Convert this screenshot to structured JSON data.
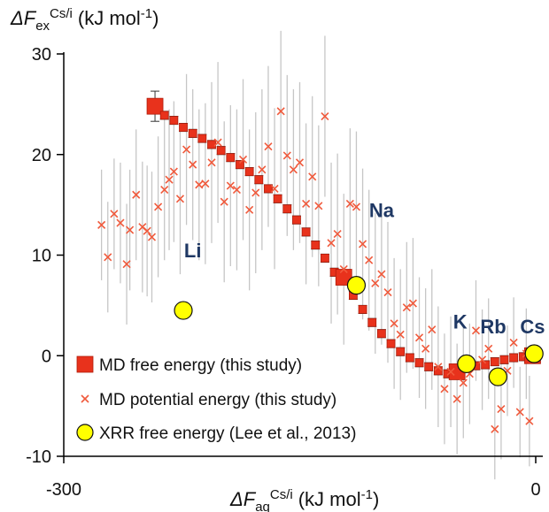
{
  "chart_data": {
    "type": "scatter",
    "ylabel": {
      "prefix": "ΔF",
      "sub": "ex",
      "sup": "Cs/i",
      "unit": "(kJ mol",
      "unit_sup": "-1",
      "unit_end": ")"
    },
    "xlabel": {
      "prefix": "ΔF",
      "sub": "aq",
      "sup": "Cs/i",
      "unit": "(kJ mol",
      "unit_sup": "-1",
      "unit_end": ")"
    },
    "xlim": [
      -300,
      0
    ],
    "ylim": [
      -10,
      30
    ],
    "x_ticks": [
      {
        "value": -300,
        "label": "-300"
      },
      {
        "value": 0,
        "label": "0"
      }
    ],
    "y_ticks": [
      {
        "value": 30,
        "label": "30"
      },
      {
        "value": 20,
        "label": "20"
      },
      {
        "value": 10,
        "label": "10"
      },
      {
        "value": 0,
        "label": "0"
      },
      {
        "value": -10,
        "label": "-10"
      }
    ],
    "grid": false,
    "legend_position": "bottom-left",
    "series": [
      {
        "name": "MD free energy (this study)",
        "marker": "square",
        "color": "#e8321c",
        "edge": "#b01c0a",
        "x": [
          -242,
          -236,
          -230,
          -224,
          -218,
          -212,
          -206,
          -200,
          -194,
          -188,
          -182,
          -176,
          -170,
          -164,
          -158,
          -152,
          -146,
          -140,
          -134,
          -128,
          -122,
          -116,
          -110,
          -104,
          -98,
          -92,
          -86,
          -80,
          -74,
          -68,
          -62,
          -56,
          -50,
          -44,
          -38,
          -32,
          -26,
          -20,
          -14,
          -8,
          -2
        ],
        "y": [
          24.8,
          23.9,
          23.4,
          22.7,
          22.1,
          21.6,
          21.0,
          20.4,
          19.7,
          19.0,
          18.3,
          17.5,
          16.6,
          15.6,
          14.6,
          13.5,
          12.3,
          11.0,
          9.7,
          8.3,
          7.8,
          6.0,
          4.6,
          3.3,
          2.2,
          1.2,
          0.4,
          -0.2,
          -0.7,
          -1.1,
          -1.5,
          -1.8,
          -1.6,
          -1.2,
          -1.0,
          -0.9,
          -0.6,
          -0.4,
          -0.2,
          -0.1,
          0.0
        ],
        "yerr": [
          1.5,
          0.4,
          0.4,
          0.4,
          0.4,
          0.4,
          0.4,
          0.4,
          0.4,
          0.4,
          0.4,
          0.4,
          0.4,
          0.4,
          0.4,
          0.4,
          0.4,
          0.4,
          0.4,
          0.4,
          0.4,
          0.4,
          0.4,
          0.4,
          0.4,
          0.4,
          0.4,
          0.4,
          0.4,
          0.4,
          0.4,
          0.4,
          0.4,
          0.4,
          0.4,
          0.4,
          0.4,
          0.4,
          0.4,
          0.4,
          0.4
        ]
      },
      {
        "name": "MD potential energy (this study)",
        "marker": "x",
        "color": "#f05a3c",
        "errorbar_color": "#bdbdbd",
        "x": [
          -276,
          -272,
          -268,
          -264,
          -260,
          -258,
          -254,
          -250,
          -247,
          -244,
          -240,
          -236,
          -233,
          -230,
          -226,
          -222,
          -218,
          -214,
          -210,
          -206,
          -202,
          -198,
          -194,
          -190,
          -186,
          -182,
          -178,
          -174,
          -170,
          -166,
          -162,
          -158,
          -154,
          -150,
          -146,
          -142,
          -138,
          -134,
          -130,
          -126,
          -122,
          -118,
          -114,
          -110,
          -106,
          -102,
          -98,
          -94,
          -90,
          -86,
          -82,
          -78,
          -74,
          -70,
          -66,
          -62,
          -58,
          -54,
          -50,
          -46,
          -42,
          -38,
          -34,
          -30,
          -26,
          -22,
          -18,
          -14,
          -10,
          -6,
          -4
        ],
        "y": [
          13,
          9.8,
          14.1,
          13.2,
          9.1,
          12.5,
          16,
          12.8,
          12.4,
          11.8,
          14.8,
          16.5,
          17.5,
          18.3,
          15.6,
          20.5,
          19,
          17,
          17.1,
          19.2,
          21.2,
          15.3,
          16.9,
          16.5,
          19.5,
          14.5,
          16.2,
          18.5,
          20.8,
          16.6,
          24.3,
          19.9,
          18.5,
          19.2,
          15.1,
          17.8,
          14.9,
          23.8,
          11.2,
          12.1,
          8.6,
          15.1,
          14.8,
          11.1,
          9.5,
          7.2,
          8.1,
          6.3,
          3.2,
          2.1,
          4.8,
          5.2,
          1.8,
          0.7,
          2.6,
          -1.1,
          -3.3,
          -1.6,
          -4.3,
          -2.7,
          -1.8,
          2.5,
          -0.4,
          0.7,
          -7.3,
          -5.3,
          -1.5,
          1.3,
          -5.6,
          0.2,
          -6.5
        ],
        "yerr": [
          5.5,
          5.5,
          5.5,
          6,
          6,
          6,
          6.5,
          6.5,
          6.5,
          6.5,
          7,
          7,
          7,
          7,
          7.5,
          7.5,
          7.5,
          7.5,
          8,
          8,
          8,
          8,
          8,
          8,
          8,
          8,
          8,
          8,
          8,
          8,
          8,
          8,
          8,
          8,
          8,
          8,
          8,
          8,
          8,
          8,
          7.5,
          7.5,
          7.5,
          7.5,
          7,
          7,
          7,
          7,
          6.5,
          6.5,
          6.5,
          6.5,
          6,
          6,
          6,
          6,
          5.5,
          5.5,
          5.5,
          5.5,
          5,
          5,
          5,
          5,
          5,
          5,
          4.5,
          4.5,
          4.5,
          4.5,
          4.5
        ]
      },
      {
        "name": "XRR free energy (Lee et al., 2013)",
        "marker": "circle",
        "color": "#ffff00",
        "edge": "#111111",
        "x": [
          -224,
          -114,
          -44,
          -24,
          -1
        ],
        "y": [
          4.5,
          7.0,
          -0.8,
          -2.1,
          0.2
        ],
        "labels": [
          "Li",
          "Na",
          "K",
          "Rb",
          "Cs"
        ],
        "label_x": [
          -218,
          -98,
          -48,
          -27,
          -2
        ],
        "label_y": [
          9.8,
          13.8,
          2.7,
          2.2,
          2.2
        ]
      }
    ]
  }
}
